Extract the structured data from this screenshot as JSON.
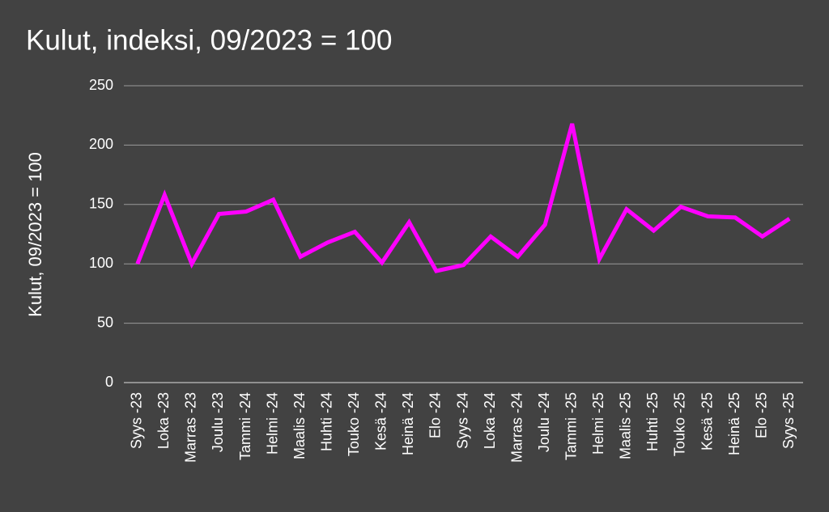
{
  "chart_data": {
    "type": "line",
    "title": "Kulut, indeksi, 09/2023 = 100",
    "y_label": "Kulut, 09/2023 = 100",
    "categories": [
      "Syys -23",
      "Loka -23",
      "Marras -23",
      "Joulu -23",
      "Tammi -24",
      "Helmi -24",
      "Maalis -24",
      "Huhti -24",
      "Touko -24",
      "Kesä -24",
      "Heinä -24",
      "Elo -24",
      "Syys -24",
      "Loka -24",
      "Marras -24",
      "Joulu -24",
      "Tammi -25",
      "Helmi -25",
      "Maalis -25",
      "Huhti -25",
      "Touko -25",
      "Kesä -25",
      "Heinä -25",
      "Elo -25",
      "Syys -25"
    ],
    "values": [
      100,
      158,
      100,
      142,
      144,
      154,
      106,
      118,
      127,
      101,
      135,
      94,
      99,
      123,
      106,
      133,
      218,
      104,
      146,
      128,
      148,
      140,
      139,
      123,
      138
    ],
    "color": "#ff00ff",
    "ylim": [
      0,
      250
    ],
    "yticks": [
      0,
      50,
      100,
      150,
      200,
      250
    ],
    "grid": true
  }
}
